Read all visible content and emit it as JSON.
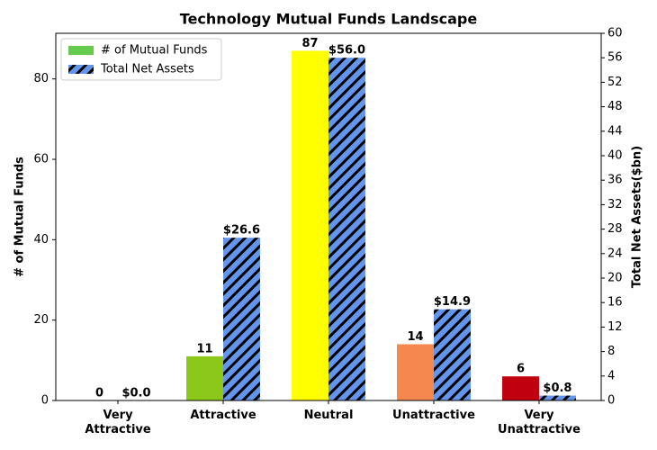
{
  "chart_data": {
    "type": "bar",
    "title": "Technology Mutual Funds Landscape",
    "categories": [
      "Very\nAttractive",
      "Attractive",
      "Neutral",
      "Unattractive",
      "Very\nUnattractive"
    ],
    "y_label": "# of Mutual Funds",
    "y2_label": "Total Net Assets($bn)",
    "series": [
      {
        "name": "# of Mutual Funds",
        "color": "#66cc4d",
        "colors": [
          "#1a9641",
          "#8cc81a",
          "#ffff00",
          "#f4884f",
          "#c0000f"
        ],
        "values": [
          0,
          11,
          87,
          14,
          6
        ]
      },
      {
        "name": "Total Net Assets",
        "color": "#6495ed",
        "hatch": true,
        "axis": "y2",
        "values": [
          0.0,
          26.6,
          56.0,
          14.9,
          0.8
        ],
        "value_labels": [
          "$0.0",
          "$26.6",
          "$56.0",
          "$14.9",
          "$0.8"
        ]
      }
    ],
    "ylim": [
      0,
      91.35
    ],
    "yticks": [
      0,
      20,
      40,
      60,
      80
    ],
    "y2lim": [
      0,
      60
    ],
    "y2ticks": [
      0,
      4,
      8,
      12,
      16,
      20,
      24,
      28,
      32,
      36,
      40,
      44,
      48,
      52,
      56,
      60
    ],
    "legend": "upper-left"
  }
}
